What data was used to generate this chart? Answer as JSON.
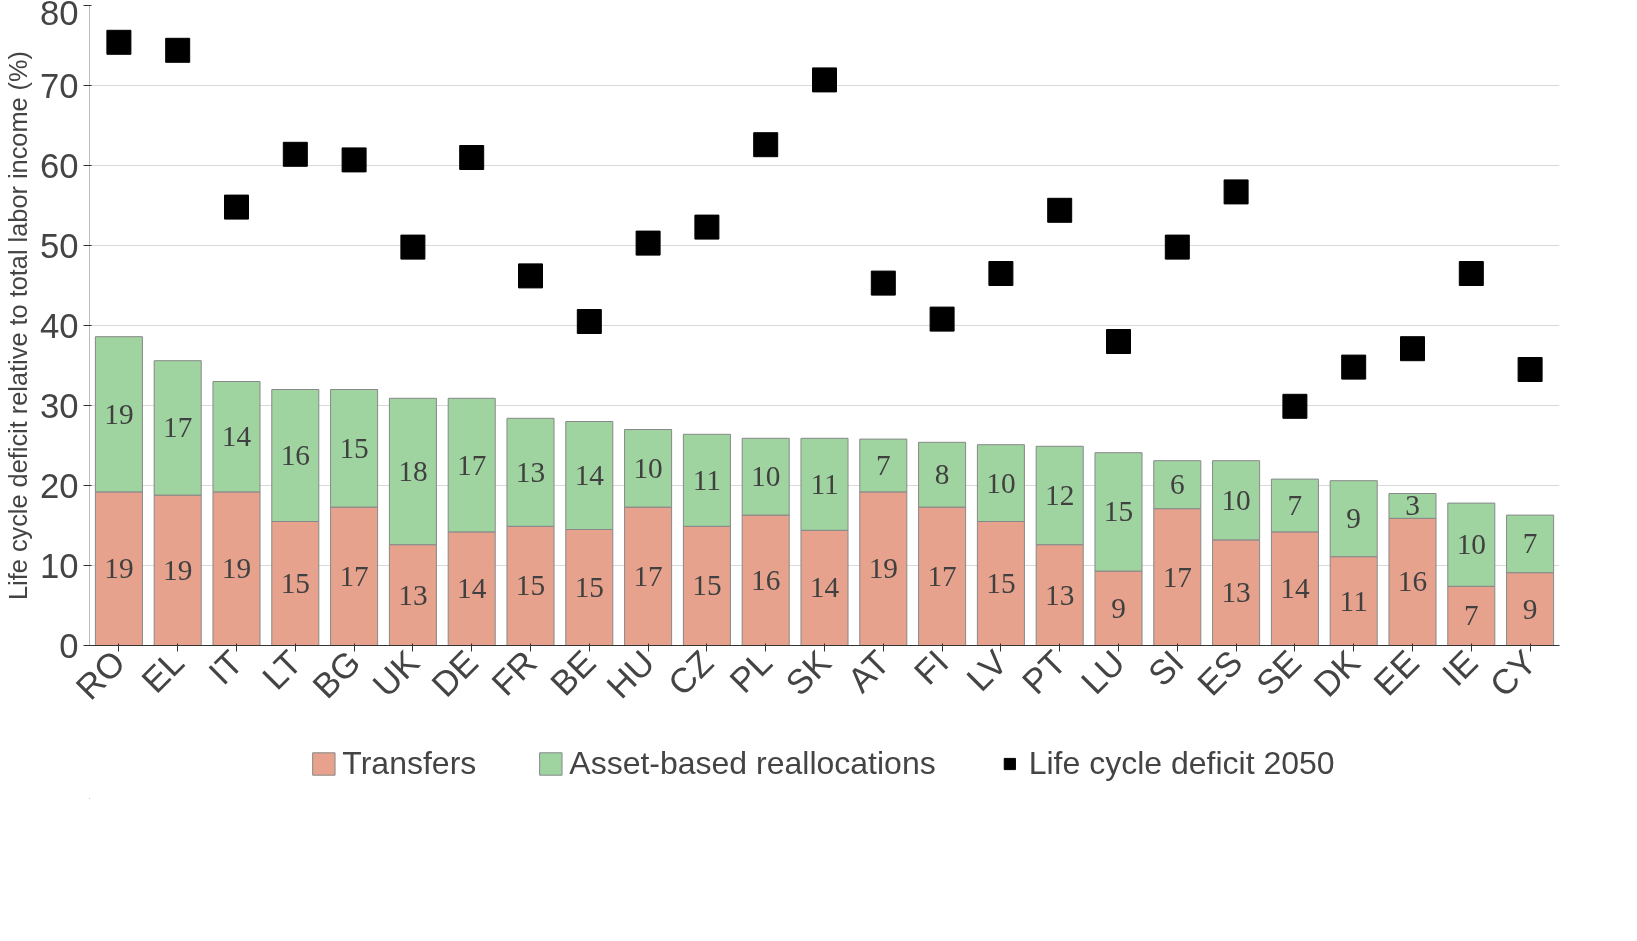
{
  "chart_data": {
    "type": "bar",
    "stacked": true,
    "ylabel": "Life cycle deficit relative to total labor income (%)",
    "categories": [
      "RO",
      "EL",
      "IT",
      "LT",
      "BG",
      "UK",
      "DE",
      "FR",
      "BE",
      "HU",
      "CZ",
      "PL",
      "SK",
      "AT",
      "FI",
      "LV",
      "PT",
      "LU",
      "SI",
      "ES",
      "SE",
      "DK",
      "EE",
      "IE",
      "CY"
    ],
    "series": [
      {
        "name": "Transfers",
        "color": "#e6a28c",
        "values": [
          19.2,
          18.8,
          19.2,
          15.5,
          17.3,
          12.6,
          14.2,
          14.9,
          14.5,
          17.3,
          14.9,
          16.3,
          14.4,
          19.2,
          17.3,
          15.5,
          12.6,
          9.3,
          17.1,
          13.2,
          14.2,
          11.1,
          15.9,
          7.4,
          9.1
        ],
        "value_labels": [
          "19",
          "19",
          "19",
          "15",
          "17",
          "13",
          "14",
          "15",
          "15",
          "17",
          "15",
          "16",
          "14",
          "19",
          "17",
          "15",
          "13",
          "9",
          "17",
          "13",
          "14",
          "11",
          "16",
          "7",
          "9"
        ]
      },
      {
        "name": "Asset-based reallocations",
        "color": "#9fd4a0",
        "values": [
          19.4,
          16.8,
          13.8,
          16.5,
          14.7,
          18.3,
          16.7,
          13.5,
          13.5,
          9.7,
          11.5,
          9.6,
          11.5,
          6.6,
          8.1,
          9.6,
          12.3,
          14.8,
          6.0,
          9.9,
          6.6,
          9.5,
          3.1,
          10.4,
          7.2
        ],
        "value_labels": [
          "19",
          "17",
          "14",
          "16",
          "15",
          "18",
          "17",
          "13",
          "14",
          "10",
          "11",
          "10",
          "11",
          "7",
          "8",
          "10",
          "12",
          "15",
          "6",
          "10",
          "7",
          "9",
          "3",
          "10",
          "7"
        ]
      },
      {
        "name": "Life cycle deficit 2050",
        "type": "scatter",
        "marker": "square",
        "color": "#000000",
        "values": [
          75.4,
          74.4,
          54.8,
          61.4,
          60.7,
          49.8,
          61.0,
          46.2,
          40.5,
          50.3,
          52.3,
          62.6,
          70.7,
          45.3,
          40.8,
          46.5,
          54.4,
          38.0,
          49.8,
          56.7,
          29.9,
          34.8,
          37.1,
          46.5,
          34.5
        ]
      }
    ],
    "ylim": [
      0,
      80
    ],
    "yticks": [
      0,
      10,
      20,
      30,
      40,
      50,
      60,
      70,
      80
    ],
    "grid": "y",
    "legend": "bottom"
  }
}
